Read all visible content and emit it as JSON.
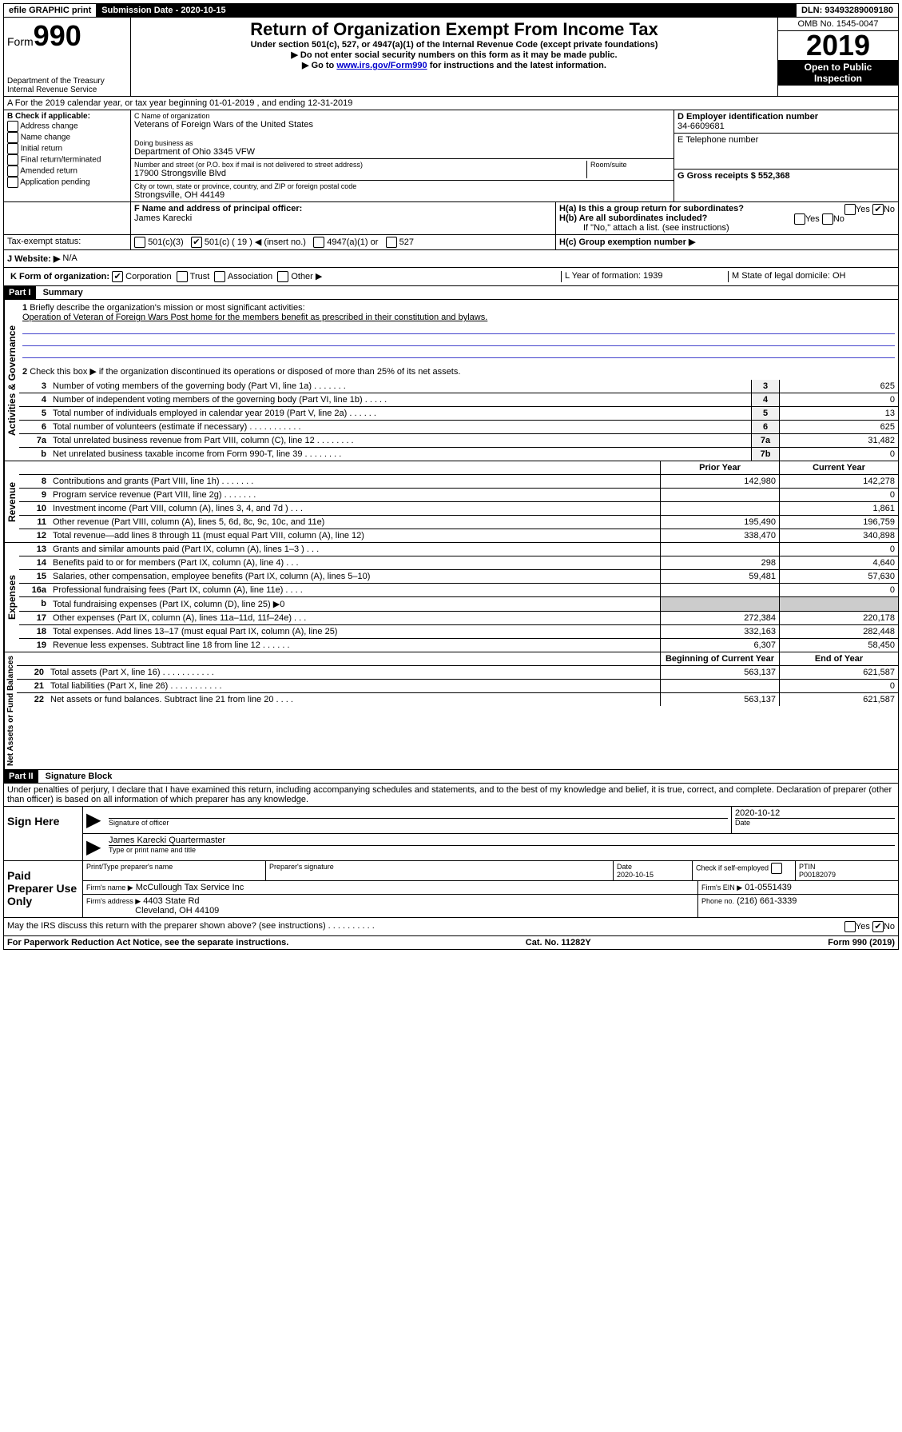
{
  "top_bar": {
    "efile": "efile GRAPHIC print",
    "submission_label": "Submission Date - 2020-10-15",
    "dln": "DLN: 93493289009180"
  },
  "header": {
    "form_label": "Form",
    "form_number": "990",
    "dept": "Department of the Treasury",
    "irs": "Internal Revenue Service",
    "title": "Return of Organization Exempt From Income Tax",
    "subtitle": "Under section 501(c), 527, or 4947(a)(1) of the Internal Revenue Code (except private foundations)",
    "note1": "▶ Do not enter social security numbers on this form as it may be made public.",
    "note2_pre": "▶ Go to ",
    "note2_link": "www.irs.gov/Form990",
    "note2_post": " for instructions and the latest information.",
    "omb": "OMB No. 1545-0047",
    "year": "2019",
    "open": "Open to Public Inspection"
  },
  "row_a": "A For the 2019 calendar year, or tax year beginning 01-01-2019    , and ending 12-31-2019",
  "col_b": {
    "label": "B Check if applicable:",
    "items": [
      "Address change",
      "Name change",
      "Initial return",
      "Final return/terminated",
      "Amended return",
      "Application pending"
    ]
  },
  "col_c": {
    "name_label": "C Name of organization",
    "name": "Veterans of Foreign Wars of the United States",
    "dba_label": "Doing business as",
    "dba": "Department of Ohio 3345 VFW",
    "addr_label": "Number and street (or P.O. box if mail is not delivered to street address)",
    "room_label": "Room/suite",
    "addr": "17900 Strongsville Blvd",
    "city_label": "City or town, state or province, country, and ZIP or foreign postal code",
    "city": "Strongsville, OH  44149"
  },
  "col_de": {
    "d_label": "D Employer identification number",
    "d_val": "34-6609681",
    "e_label": "E Telephone number",
    "g_label": "G Gross receipts $ 552,368"
  },
  "fgh": {
    "f_label": "F  Name and address of principal officer:",
    "f_val": "James Karecki",
    "ha": "H(a)  Is this a group return for subordinates?",
    "hb": "H(b)  Are all subordinates included?",
    "hb_note": "If \"No,\" attach a list. (see instructions)",
    "hc": "H(c)  Group exemption number ▶",
    "tax_exempt": "Tax-exempt status:",
    "te_501c3": "501(c)(3)",
    "te_501c": "501(c) ( 19 ) ◀ (insert no.)",
    "te_4947": "4947(a)(1) or",
    "te_527": "527"
  },
  "j": {
    "label": "J   Website: ▶",
    "val": "N/A"
  },
  "k": {
    "label": "K Form of organization:",
    "corp": "Corporation",
    "trust": "Trust",
    "assoc": "Association",
    "other": "Other ▶",
    "l_label": "L Year of formation: 1939",
    "m_label": "M State of legal domicile: OH"
  },
  "part1": {
    "header": "Part I",
    "title": "Summary",
    "q1": "Briefly describe the organization's mission or most significant activities:",
    "mission": "Operation of Veteran of Foreign Wars Post home for the members benefit as prescribed in their constitution and bylaws.",
    "q2": "Check this box ▶       if the organization discontinued its operations or disposed of more than 25% of its net assets.",
    "lines_single": [
      {
        "n": "3",
        "d": "Number of voting members of the governing body (Part VI, line 1a)  .    .    .    .    .    .    .",
        "b": "3",
        "v": "625"
      },
      {
        "n": "4",
        "d": "Number of independent voting members of the governing body (Part VI, line 1b)  .    .    .    .    .",
        "b": "4",
        "v": "0"
      },
      {
        "n": "5",
        "d": "Total number of individuals employed in calendar year 2019 (Part V, line 2a)  .    .    .    .    .    .",
        "b": "5",
        "v": "13"
      },
      {
        "n": "6",
        "d": "Total number of volunteers (estimate if necessary)  .    .    .    .    .    .    .    .    .    .    .",
        "b": "6",
        "v": "625"
      },
      {
        "n": "7a",
        "d": "Total unrelated business revenue from Part VIII, column (C), line 12  .    .    .    .    .    .    .    .",
        "b": "7a",
        "v": "31,482"
      },
      {
        "n": "b",
        "d": "Net unrelated business taxable income from Form 990-T, line 39  .    .    .    .    .    .    .    .",
        "b": "7b",
        "v": "0"
      }
    ],
    "col_headers": {
      "prior": "Prior Year",
      "current": "Current Year"
    },
    "revenue": [
      {
        "n": "8",
        "d": "Contributions and grants (Part VIII, line 1h)  .    .    .    .    .    .    .",
        "p": "142,980",
        "c": "142,278"
      },
      {
        "n": "9",
        "d": "Program service revenue (Part VIII, line 2g)  .    .    .    .    .    .    .",
        "p": "",
        "c": "0"
      },
      {
        "n": "10",
        "d": "Investment income (Part VIII, column (A), lines 3, 4, and 7d )  .    .    .",
        "p": "",
        "c": "1,861"
      },
      {
        "n": "11",
        "d": "Other revenue (Part VIII, column (A), lines 5, 6d, 8c, 9c, 10c, and 11e)",
        "p": "195,490",
        "c": "196,759"
      },
      {
        "n": "12",
        "d": "Total revenue—add lines 8 through 11 (must equal Part VIII, column (A), line 12)",
        "p": "338,470",
        "c": "340,898"
      }
    ],
    "expenses": [
      {
        "n": "13",
        "d": "Grants and similar amounts paid (Part IX, column (A), lines 1–3 )  .    .    .",
        "p": "",
        "c": "0"
      },
      {
        "n": "14",
        "d": "Benefits paid to or for members (Part IX, column (A), line 4)  .    .    .",
        "p": "298",
        "c": "4,640"
      },
      {
        "n": "15",
        "d": "Salaries, other compensation, employee benefits (Part IX, column (A), lines 5–10)",
        "p": "59,481",
        "c": "57,630"
      },
      {
        "n": "16a",
        "d": "Professional fundraising fees (Part IX, column (A), line 11e)  .    .    .    .",
        "p": "",
        "c": "0"
      },
      {
        "n": "b",
        "d": "Total fundraising expenses (Part IX, column (D), line 25) ▶0",
        "p": "—shade—",
        "c": "—shade—"
      },
      {
        "n": "17",
        "d": "Other expenses (Part IX, column (A), lines 11a–11d, 11f–24e)  .    .    .",
        "p": "272,384",
        "c": "220,178"
      },
      {
        "n": "18",
        "d": "Total expenses. Add lines 13–17 (must equal Part IX, column (A), line 25)",
        "p": "332,163",
        "c": "282,448"
      },
      {
        "n": "19",
        "d": "Revenue less expenses. Subtract line 18 from line 12  .    .    .    .    .    .",
        "p": "6,307",
        "c": "58,450"
      }
    ],
    "net_headers": {
      "begin": "Beginning of Current Year",
      "end": "End of Year"
    },
    "net": [
      {
        "n": "20",
        "d": "Total assets (Part X, line 16)  .    .    .    .    .    .    .    .    .    .    .",
        "p": "563,137",
        "c": "621,587"
      },
      {
        "n": "21",
        "d": "Total liabilities (Part X, line 26)  .    .    .    .    .    .    .    .    .    .    .",
        "p": "",
        "c": "0"
      },
      {
        "n": "22",
        "d": "Net assets or fund balances. Subtract line 21 from line 20  .    .    .    .",
        "p": "563,137",
        "c": "621,587"
      }
    ]
  },
  "side_labels": {
    "gov": "Activities & Governance",
    "rev": "Revenue",
    "exp": "Expenses",
    "net": "Net Assets or Fund Balances"
  },
  "part2": {
    "header": "Part II",
    "title": "Signature Block",
    "perjury": "Under penalties of perjury, I declare that I have examined this return, including accompanying schedules and statements, and to the best of my knowledge and belief, it is true, correct, and complete. Declaration of preparer (other than officer) is based on all information of which preparer has any knowledge.",
    "sign_here": "Sign Here",
    "sig_officer": "Signature of officer",
    "sig_date": "2020-10-12",
    "date_label": "Date",
    "officer_name": "James Karecki Quartermaster",
    "type_name": "Type or print name and title",
    "paid": "Paid Preparer Use Only",
    "prep_name_label": "Print/Type preparer's name",
    "prep_sig_label": "Preparer's signature",
    "prep_date_label": "Date",
    "prep_date": "2020-10-15",
    "check_self": "Check         if self-employed",
    "ptin_label": "PTIN",
    "ptin": "P00182079",
    "firm_name_label": "Firm's name      ▶",
    "firm_name": "McCullough Tax Service Inc",
    "firm_ein_label": "Firm's EIN ▶",
    "firm_ein": "01-0551439",
    "firm_addr_label": "Firm's address ▶",
    "firm_addr": "4403 State Rd",
    "firm_city": "Cleveland, OH  44109",
    "phone_label": "Phone no.",
    "phone": "(216) 661-3339",
    "discuss": "May the IRS discuss this return with the preparer shown above? (see instructions)   .    .    .    .    .    .    .    .    .    ."
  },
  "footer": {
    "left": "For Paperwork Reduction Act Notice, see the separate instructions.",
    "mid": "Cat. No. 11282Y",
    "right": "Form 990 (2019)"
  }
}
